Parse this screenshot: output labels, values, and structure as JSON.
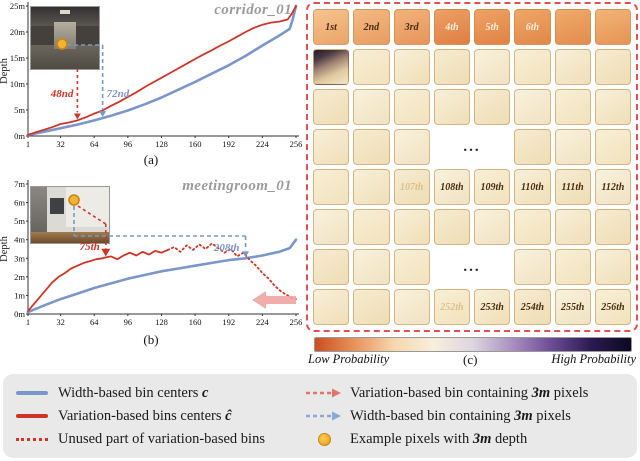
{
  "figure": {
    "panel_a": {
      "title": "corridor_01",
      "label": "(a)"
    },
    "panel_b": {
      "title": "meetingroom_01",
      "label": "(b)"
    },
    "panel_c": {
      "label": "(c)",
      "low_label": "Low Probability",
      "high_label": "High Probability",
      "ellipsis": "...",
      "grid": {
        "rows": [
          {
            "labels": [
              "1st",
              "2nd",
              "3rd",
              "4th",
              "5th",
              "6th",
              "",
              ""
            ],
            "styles": [
              "dark",
              "dark",
              "dark",
              "light",
              "light",
              "light",
              "",
              ""
            ],
            "palette": "warm"
          },
          {
            "labels": [
              "",
              "",
              "",
              "",
              "",
              "",
              "",
              ""
            ],
            "dark_first": true
          },
          {
            "labels": [
              "",
              "",
              "",
              "",
              "",
              "",
              "",
              ""
            ]
          },
          {
            "ellipsis": true,
            "labels": [
              "",
              "",
              "",
              "",
              "",
              "",
              "",
              ""
            ]
          },
          {
            "labels": [
              "",
              "",
              "107th",
              "108th",
              "109th",
              "110th",
              "111th",
              "112th"
            ],
            "styles": [
              "",
              "",
              "faint",
              "dark",
              "dark",
              "dark",
              "dark",
              "dark"
            ]
          },
          {
            "labels": [
              "",
              "",
              "",
              "",
              "",
              "",
              "",
              ""
            ]
          },
          {
            "ellipsis": true,
            "labels": [
              "",
              "",
              "",
              "",
              "",
              "",
              "",
              ""
            ]
          },
          {
            "labels": [
              "",
              "",
              "",
              "252th",
              "253th",
              "254th",
              "255th",
              "256th"
            ],
            "styles": [
              "",
              "",
              "",
              "faint",
              "dark",
              "dark",
              "dark",
              "dark"
            ]
          }
        ]
      }
    }
  },
  "legend": {
    "left": [
      {
        "pre": "Width-based bin centers ",
        "math": "c",
        "post": ""
      },
      {
        "pre": "Variation-based bins centers ",
        "math": "ĉ",
        "post": ""
      },
      {
        "pre": "Unused part of variation-based bins",
        "math": "",
        "post": ""
      }
    ],
    "right": [
      {
        "pre": "Variation-based bin containing ",
        "math": "3m",
        "post": " pixels"
      },
      {
        "pre": "Width-based bin containing ",
        "math": "3m",
        "post": " pixels"
      },
      {
        "pre": "Example pixels with ",
        "math": "3m",
        "post": " depth"
      }
    ]
  },
  "colors": {
    "blue": "#7b96cb",
    "red": "#cf3527",
    "arrow_red": "#e2766a",
    "arrow_blue": "#8fa7d4",
    "dot_yellow": "#f2b233",
    "panel_border": "#e05050",
    "pink_arrow": "#f0a3a3",
    "colorbar": [
      "#c94f23",
      "#e8935a",
      "#f6d7ae",
      "#f8efdc",
      "#ded5e0",
      "#a98fc0",
      "#6b4b94",
      "#2a1a50",
      "#0d0820"
    ]
  },
  "chart_data": [
    {
      "type": "line",
      "id": "corridor",
      "title": "corridor_01",
      "xlabel": "(a)",
      "ylabel": "Depth",
      "xlim": [
        1,
        256
      ],
      "ylim": [
        0,
        25
      ],
      "xticks": [
        1,
        32,
        64,
        96,
        128,
        160,
        192,
        224,
        256
      ],
      "yticks": [
        "0m",
        "5m",
        "10m",
        "15m",
        "20m",
        "25m"
      ],
      "legend_position": "none",
      "grid": false,
      "series": [
        {
          "name": "Width-based bin centers",
          "color": "#7b96cb",
          "style": "solid",
          "x": [
            1,
            16,
            32,
            48,
            64,
            80,
            96,
            112,
            128,
            144,
            160,
            176,
            192,
            208,
            224,
            240,
            250,
            253,
            256
          ],
          "y": [
            0.2,
            0.8,
            1.5,
            2.2,
            3.0,
            3.9,
            4.9,
            6.1,
            7.4,
            8.9,
            10.4,
            12.0,
            13.6,
            15.4,
            17.4,
            19.3,
            20.6,
            22.5,
            25.0
          ]
        },
        {
          "name": "Variation-based bins centers",
          "color": "#cf3527",
          "style": "solid",
          "x": [
            1,
            8,
            16,
            24,
            32,
            40,
            48,
            56,
            64,
            72,
            80,
            88,
            96,
            104,
            112,
            120,
            128,
            136,
            144,
            152,
            160,
            168,
            176,
            184,
            192,
            200,
            208,
            216,
            224,
            232,
            240,
            248,
            252,
            256
          ],
          "y": [
            0.2,
            0.7,
            1.2,
            1.7,
            2.3,
            2.6,
            3.0,
            3.6,
            4.3,
            4.9,
            5.8,
            6.6,
            7.5,
            8.4,
            9.4,
            10.3,
            11.2,
            12.1,
            13.0,
            13.9,
            14.8,
            15.7,
            16.5,
            17.4,
            18.2,
            19.1,
            20.0,
            20.8,
            21.4,
            21.8,
            22.0,
            22.4,
            23.5,
            25.0
          ]
        }
      ],
      "annotations": {
        "red": {
          "label": "48nd",
          "x": 48
        },
        "blue": {
          "label": "72nd",
          "x": 72
        }
      }
    },
    {
      "type": "line",
      "id": "meetingroom",
      "title": "meetingroom_01",
      "xlabel": "(b)",
      "ylabel": "Depth",
      "xlim": [
        1,
        256
      ],
      "ylim": [
        0,
        7
      ],
      "xticks": [
        1,
        32,
        64,
        96,
        128,
        160,
        192,
        224,
        256
      ],
      "yticks": [
        "0m",
        "1m",
        "2m",
        "3m",
        "4m",
        "5m",
        "6m",
        "7m"
      ],
      "legend_position": "none",
      "grid": false,
      "series": [
        {
          "name": "Width-based bin centers",
          "color": "#7b96cb",
          "style": "solid",
          "x": [
            1,
            16,
            32,
            48,
            64,
            80,
            96,
            112,
            128,
            144,
            160,
            176,
            192,
            208,
            224,
            240,
            250,
            256
          ],
          "y": [
            0.1,
            0.45,
            0.8,
            1.1,
            1.4,
            1.65,
            1.9,
            2.1,
            2.3,
            2.45,
            2.6,
            2.75,
            2.9,
            3.0,
            3.15,
            3.35,
            3.55,
            4.0
          ]
        },
        {
          "name": "Variation-based bins centers",
          "color": "#cf3527",
          "style": "solid",
          "x": [
            1,
            6,
            12,
            18,
            24,
            30,
            36,
            42,
            48,
            54,
            60,
            66,
            72,
            75,
            80,
            86,
            92,
            98,
            104,
            110,
            116,
            122,
            128,
            134
          ],
          "y": [
            0.15,
            0.5,
            0.9,
            1.3,
            1.7,
            2.0,
            2.2,
            2.45,
            2.6,
            2.75,
            2.85,
            2.95,
            3.0,
            3.05,
            3.1,
            2.95,
            3.15,
            3.3,
            3.15,
            3.35,
            3.2,
            3.4,
            3.3,
            3.45
          ]
        },
        {
          "name": "Unused part of variation-based bins",
          "color": "#cf3527",
          "style": "dotted",
          "x": [
            134,
            140,
            146,
            152,
            158,
            164,
            170,
            176,
            182,
            188,
            194,
            200,
            206,
            212,
            218,
            224,
            230,
            236,
            242,
            248,
            252,
            256
          ],
          "y": [
            3.45,
            3.6,
            3.35,
            3.7,
            3.45,
            3.75,
            3.5,
            3.8,
            3.55,
            3.3,
            3.5,
            3.1,
            3.3,
            2.9,
            2.6,
            2.2,
            1.9,
            1.5,
            1.2,
            1.0,
            0.85,
            0.8
          ]
        }
      ],
      "annotations": {
        "red": {
          "label": "75th",
          "x": 75
        },
        "blue": {
          "label": "208th",
          "x": 208
        }
      }
    }
  ]
}
